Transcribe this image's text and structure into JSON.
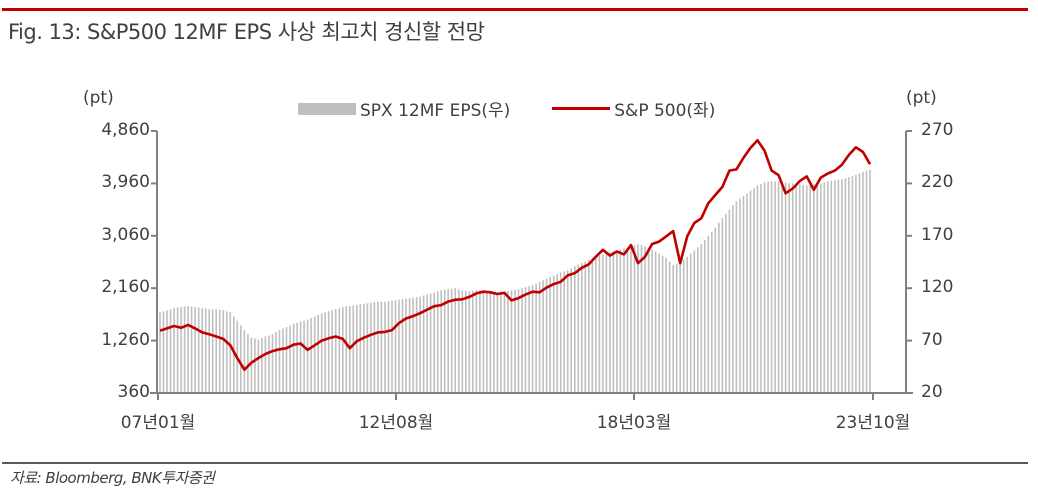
{
  "figure": {
    "title": "Fig. 13: S&P500 12MF EPS 사상 최고치 경신할 전망",
    "left_unit": "(pt)",
    "right_unit": "(pt)",
    "source": "자료: Bloomberg, BNK투자증권"
  },
  "legend": {
    "eps_label": "SPX 12MF EPS(우)",
    "spx_label": "S&P 500(좌)"
  },
  "colors": {
    "accent": "#c00000",
    "bar": "#bfbfbf",
    "axis": "#808080",
    "text": "#404040"
  },
  "axes": {
    "left_ticks": [
      "4,860",
      "3,960",
      "3,060",
      "2,160",
      "1,260",
      "360"
    ],
    "right_ticks": [
      "270",
      "220",
      "170",
      "120",
      "70",
      "20"
    ],
    "x_ticks": [
      "07년01월",
      "12년08월",
      "18년03월",
      "23년10월"
    ]
  },
  "chart_data": {
    "type": "bar+line",
    "title": "Fig. 13: S&P500 12MF EPS 사상 최고치 경신할 전망",
    "xlabel": "",
    "ylabel_left": "(pt)",
    "ylabel_right": "(pt)",
    "x_range": [
      "2007-01",
      "2023-10"
    ],
    "x_tick_labels": [
      "07년01월",
      "12년08월",
      "18년03월",
      "23년10월"
    ],
    "ylim_left": [
      360,
      4860
    ],
    "ylim_right": [
      20,
      270
    ],
    "left_ticks": [
      360,
      1260,
      2160,
      3060,
      3960,
      4860
    ],
    "right_ticks": [
      20,
      70,
      120,
      170,
      220,
      270
    ],
    "grid": false,
    "legend_position": "top",
    "sampling": "every 2 months from 2007-01",
    "series": [
      {
        "name": "SPX 12MF EPS(우)",
        "type": "bar",
        "axis": "right",
        "color": "#bfbfbf",
        "values": [
          97,
          99,
          101,
          102,
          103,
          102,
          101,
          100,
          100,
          99,
          97,
          89,
          80,
          73,
          71,
          74,
          76,
          80,
          83,
          86,
          88,
          90,
          93,
          96,
          98,
          100,
          102,
          103,
          104,
          105,
          106,
          107,
          107,
          108,
          109,
          110,
          111,
          112,
          114,
          116,
          118,
          119,
          120,
          118,
          117,
          118,
          118,
          117,
          116,
          117,
          118,
          119,
          121,
          123,
          126,
          129,
          132,
          135,
          137,
          141,
          144,
          147,
          150,
          152,
          155,
          156,
          158,
          160,
          162,
          160,
          157,
          153,
          149,
          142,
          145,
          150,
          156,
          162,
          170,
          178,
          187,
          195,
          203,
          208,
          213,
          218,
          221,
          222,
          222,
          221,
          220,
          219,
          218,
          219,
          220,
          222,
          223,
          224,
          226,
          228,
          231,
          233
        ]
      },
      {
        "name": "S&P 500(좌)",
        "type": "line",
        "axis": "left",
        "color": "#c00000",
        "values": [
          1430,
          1470,
          1510,
          1480,
          1530,
          1470,
          1400,
          1370,
          1330,
          1290,
          1180,
          960,
          760,
          880,
          960,
          1030,
          1080,
          1110,
          1130,
          1190,
          1210,
          1100,
          1180,
          1260,
          1300,
          1330,
          1290,
          1130,
          1250,
          1310,
          1360,
          1400,
          1410,
          1440,
          1560,
          1640,
          1680,
          1730,
          1790,
          1850,
          1870,
          1930,
          1960,
          1970,
          2010,
          2070,
          2100,
          2090,
          2060,
          2080,
          1950,
          1990,
          2050,
          2100,
          2090,
          2170,
          2230,
          2270,
          2380,
          2420,
          2510,
          2570,
          2700,
          2820,
          2720,
          2790,
          2740,
          2900,
          2590,
          2700,
          2920,
          2960,
          3050,
          3140,
          2590,
          3050,
          3280,
          3360,
          3620,
          3760,
          3900,
          4180,
          4200,
          4400,
          4570,
          4700,
          4520,
          4180,
          4100,
          3790,
          3870,
          4000,
          4080,
          3850,
          4060,
          4130,
          4180,
          4280,
          4450,
          4580,
          4500,
          4290
        ]
      }
    ]
  }
}
